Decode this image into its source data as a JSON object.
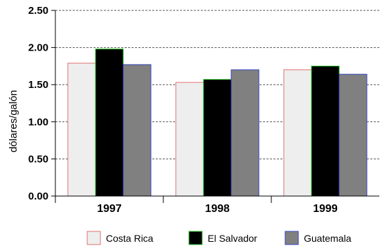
{
  "chart_data": {
    "type": "bar",
    "title": "",
    "xlabel": "",
    "ylabel": "dólares/galón",
    "ylim": [
      0,
      2.5
    ],
    "yticks": [
      "0.00",
      "0.50",
      "1.00",
      "1.50",
      "2.00",
      "2.50"
    ],
    "grid": true,
    "legend_position": "bottom",
    "categories": [
      "1997",
      "1998",
      "1999"
    ],
    "series": [
      {
        "name": "Costa Rica",
        "values": [
          1.79,
          1.53,
          1.7
        ],
        "fill": "#eeeeee",
        "stroke": "#e07070"
      },
      {
        "name": "El Salvador",
        "values": [
          1.98,
          1.57,
          1.75
        ],
        "fill": "#000000",
        "stroke": "#22bb22"
      },
      {
        "name": "Guatemala",
        "values": [
          1.77,
          1.7,
          1.64
        ],
        "fill": "#808080",
        "stroke": "#3344bb"
      }
    ]
  }
}
